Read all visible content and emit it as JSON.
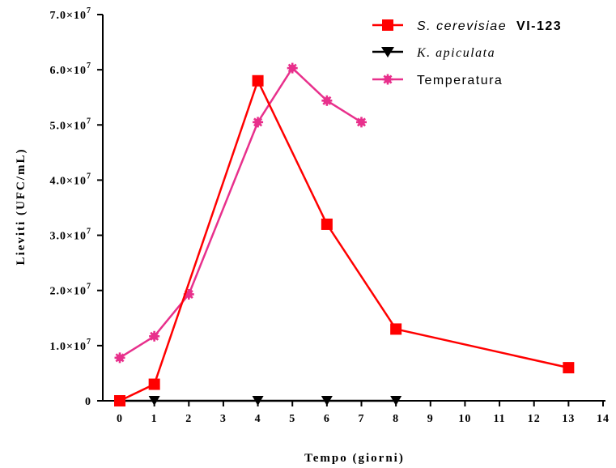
{
  "chart_data": {
    "type": "line",
    "xlabel": "Tempo (giorni)",
    "ylabel": "Lieviti (UFC/mL)",
    "xlim": [
      0,
      14
    ],
    "ylim": [
      0,
      70000000
    ],
    "x_ticks": [
      "0",
      "1",
      "2",
      "3",
      "4",
      "5",
      "6",
      "7",
      "8",
      "9",
      "10",
      "11",
      "12",
      "13",
      "14"
    ],
    "y_ticks": [
      {
        "value": 0,
        "mantissa": "0",
        "exp": ""
      },
      {
        "value": 10000000,
        "mantissa": "1.0×10",
        "exp": "7"
      },
      {
        "value": 20000000,
        "mantissa": "2.0×10",
        "exp": "7"
      },
      {
        "value": 30000000,
        "mantissa": "3.0×10",
        "exp": "7"
      },
      {
        "value": 40000000,
        "mantissa": "4.0×10",
        "exp": "7"
      },
      {
        "value": 50000000,
        "mantissa": "5.0×10",
        "exp": "7"
      },
      {
        "value": 60000000,
        "mantissa": "6.0×10",
        "exp": "7"
      },
      {
        "value": 70000000,
        "mantissa": "7.0×10",
        "exp": "7"
      }
    ],
    "grid": false,
    "legend_position": "top-right",
    "series": [
      {
        "name": "S. cerevisiae VI-123",
        "name_italic": "S. cerevisiae",
        "name_bold": "VI-123",
        "color": "#ff0000",
        "marker": "square",
        "x": [
          0,
          1,
          4,
          6,
          8,
          13
        ],
        "y": [
          0,
          3000000,
          58000000,
          32000000,
          13000000,
          6000000
        ]
      },
      {
        "name": "K. apiculata",
        "color": "#000000",
        "marker": "triangle-down",
        "x": [
          0,
          1,
          4,
          6,
          8
        ],
        "y": [
          0,
          0,
          0,
          0,
          0
        ]
      },
      {
        "name": "Temperatura",
        "color": "#e8308c",
        "marker": "asterisk",
        "x": [
          0,
          1,
          2,
          4,
          5,
          6,
          7
        ],
        "y": [
          7800000,
          11700000,
          19300000,
          50500000,
          60300000,
          54400000,
          50500000
        ]
      }
    ]
  }
}
